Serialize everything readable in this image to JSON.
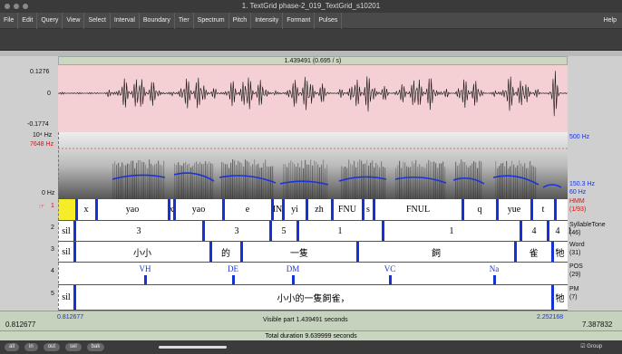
{
  "window": {
    "title": "1. TextGrid phase-2_019_TextGrid_s10201"
  },
  "menu": {
    "items": [
      "File",
      "Edit",
      "Query",
      "View",
      "Select",
      "Interval",
      "Boundary",
      "Tier",
      "Spectrum",
      "Pitch",
      "Intensity",
      "Formant",
      "Pulses"
    ],
    "help": "Help"
  },
  "header": {
    "selection": "1.439491 (0.695 / s)"
  },
  "waveform": {
    "max": "0.1276",
    "zero": "0",
    "min": "-0.1774"
  },
  "spectrogram": {
    "top_freq": "10⁴ Hz",
    "cursor_freq": "7648 Hz",
    "bottom_freq": "0 Hz",
    "pitch_top": "500 Hz",
    "pitch_value": "150.3 Hz",
    "pitch_bottom": "60 Hz"
  },
  "tiers": [
    {
      "num": "1",
      "marker": "☞",
      "name": "HMM",
      "count": "(1/93)",
      "name_color": "#d11111",
      "intervals": [
        "",
        "x",
        "yao",
        "x",
        "yao",
        "e",
        "IN",
        "yi",
        "zh",
        "FNU",
        "s",
        "FNUL",
        "q",
        "yue",
        "t"
      ]
    },
    {
      "num": "2",
      "name": "SyllableTone",
      "count": "(46)",
      "intervals": [
        "sil",
        "3",
        "3",
        "5",
        "1",
        "1",
        "4",
        "4",
        "1"
      ]
    },
    {
      "num": "3",
      "name": "Word",
      "count": "(31)",
      "intervals": [
        "sil",
        "小小",
        "的",
        "一隻",
        "飼",
        "雀",
        "牠"
      ]
    },
    {
      "num": "4",
      "name": "POS",
      "count": "(29)",
      "points": [
        "VH",
        "DE",
        "DM",
        "VC",
        "Na"
      ]
    },
    {
      "num": "5",
      "name": "PM",
      "count": "(7)",
      "intervals": [
        "sil",
        "小小的一隻飼雀，",
        "牠"
      ]
    }
  ],
  "footer": {
    "left_time": "0.812677",
    "visible_start": "0.812677",
    "visible_text": "Visible part 1.439491 seconds",
    "visible_end": "2.252168",
    "right_time": "7.387832",
    "total": "Total duration 9.639999 seconds"
  },
  "bottom": {
    "buttons": [
      "all",
      "in",
      "out",
      "sel",
      "bak"
    ],
    "group": "☑ Group"
  }
}
